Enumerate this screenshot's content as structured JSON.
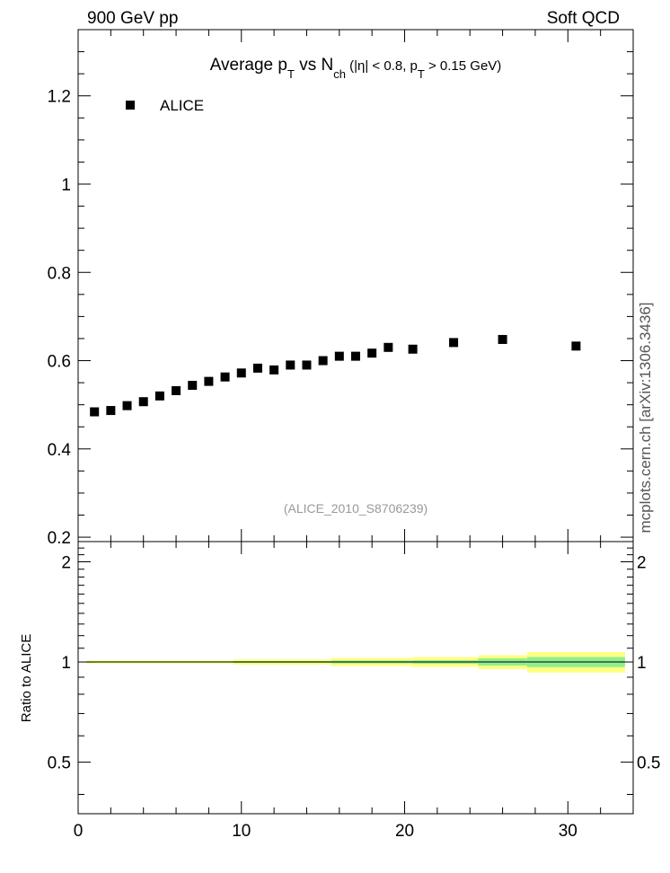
{
  "header": {
    "energy_label": "900 GeV pp",
    "process_label": "Soft QCD"
  },
  "side_label": "mcplots.cern.ch [arXiv:1306.3436]",
  "analysis_label": "(ALICE_2010_S8706239)",
  "chart_data": [
    {
      "type": "scatter",
      "title_parts": {
        "t1": "Average p",
        "t1_sub": "T",
        "t2": " vs N",
        "t2_sub": "ch",
        "t3": " (|η| < 0.8, p",
        "t3_sub": "T",
        "t4": " > 0.15 GeV)"
      },
      "xlabel": "",
      "ylabel": "",
      "xlim": [
        0,
        34
      ],
      "ylim": [
        0.19,
        1.35
      ],
      "yticks": [
        0.2,
        0.4,
        0.6,
        0.8,
        1.0,
        1.2
      ],
      "ytick_labels": [
        "0.2",
        "0.4",
        "0.6",
        "0.8",
        "1",
        "1.2"
      ],
      "legend": {
        "placement": "top-left",
        "entries": [
          "ALICE"
        ]
      },
      "series": [
        {
          "name": "ALICE",
          "marker": "square",
          "color": "#000000",
          "x": [
            1,
            2,
            3,
            4,
            5,
            6,
            7,
            8,
            9,
            10,
            11,
            12,
            13,
            14,
            15,
            16,
            17,
            18,
            19,
            20.5,
            23,
            26,
            30.5
          ],
          "y": [
            0.484,
            0.487,
            0.498,
            0.507,
            0.52,
            0.532,
            0.544,
            0.553,
            0.563,
            0.572,
            0.583,
            0.579,
            0.59,
            0.59,
            0.6,
            0.61,
            0.61,
            0.617,
            0.63,
            0.626,
            0.641,
            0.648,
            0.633
          ]
        }
      ]
    },
    {
      "type": "area",
      "ylabel": "Ratio to ALICE",
      "xlim": [
        0,
        34
      ],
      "ylim": [
        0.35,
        2.3
      ],
      "xticks": [
        0,
        10,
        20,
        30
      ],
      "xtick_labels": [
        "0",
        "10",
        "20",
        "30"
      ],
      "yticks": [
        0.5,
        1,
        2
      ],
      "ytick_labels": [
        "0.5",
        "1",
        "2"
      ],
      "reference_line": 1,
      "colors": {
        "stat_band": "#90ee90",
        "total_band": "#ffff80",
        "ref_line": "#000000"
      },
      "bands": {
        "x_edges": [
          0.5,
          9.5,
          15.5,
          20.5,
          24.5,
          27.5,
          33.5
        ],
        "stat_half_width": [
          0.004,
          0.006,
          0.01,
          0.012,
          0.025,
          0.035
        ],
        "total_half_width": [
          0.01,
          0.018,
          0.028,
          0.034,
          0.048,
          0.07
        ]
      }
    }
  ]
}
